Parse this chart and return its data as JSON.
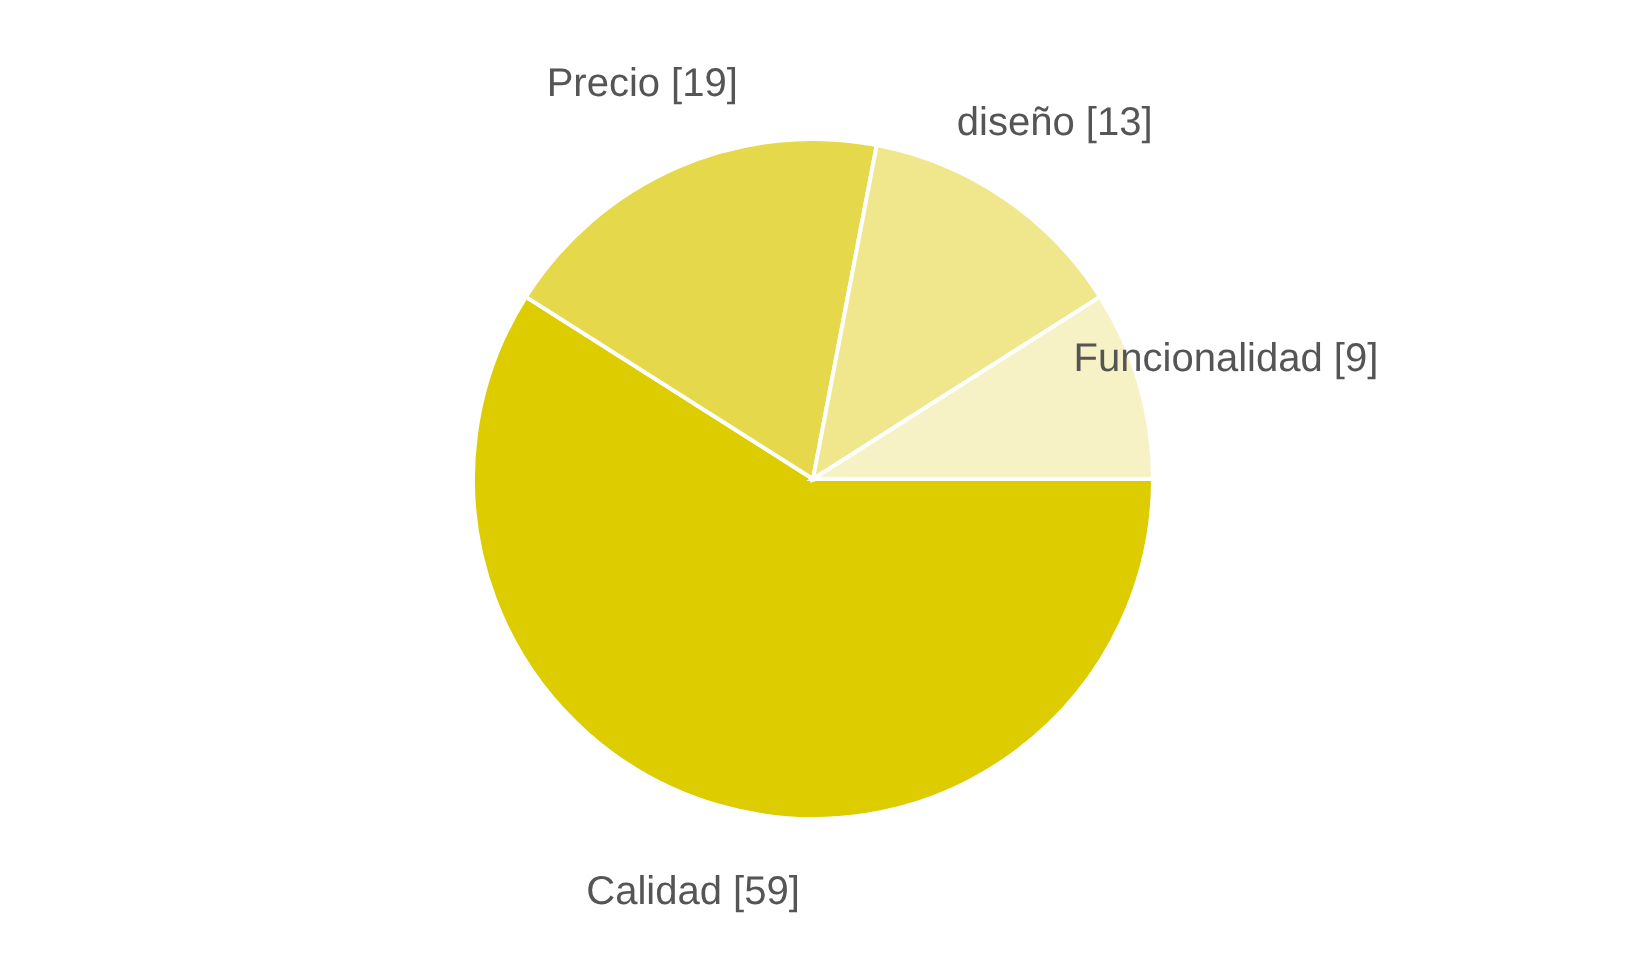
{
  "chart_data": {
    "type": "pie",
    "categories": [
      "Calidad",
      "Precio",
      "diseño",
      "Funcionalidad"
    ],
    "values": [
      59,
      19,
      13,
      9
    ],
    "colors": [
      "#dccc00",
      "#e5d84a",
      "#f0e68c",
      "#f7f2c6"
    ],
    "value_labels": [
      "[59]",
      "[19]",
      "[13]",
      "[9]"
    ]
  }
}
